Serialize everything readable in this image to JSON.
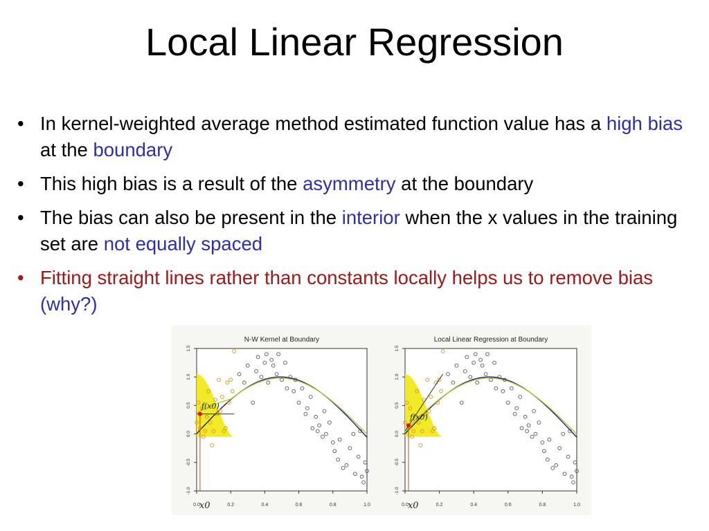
{
  "slide": {
    "title": "Local Linear Regression",
    "bullets": [
      {
        "parts": [
          {
            "text": "In kernel-weighted average method estimated function value has a ",
            "style": "normal"
          },
          {
            "text": "high bias",
            "style": "highlight"
          },
          {
            "text": " at the ",
            "style": "normal"
          },
          {
            "text": "boundary",
            "style": "highlight"
          }
        ]
      },
      {
        "parts": [
          {
            "text": "This high bias is a result of the ",
            "style": "normal"
          },
          {
            "text": "asymmetry",
            "style": "highlight"
          },
          {
            "text": " at the boundary",
            "style": "normal"
          }
        ]
      },
      {
        "parts": [
          {
            "text": "The bias can also be present in the ",
            "style": "normal"
          },
          {
            "text": "interior",
            "style": "highlight"
          },
          {
            "text": " when the x values in the training set are ",
            "style": "normal"
          },
          {
            "text": "not equally spaced",
            "style": "highlight"
          }
        ]
      },
      {
        "bullet_color": "#a01818",
        "parts": [
          {
            "text": "Fitting straight lines rather than constants locally helps us to remove bias ",
            "style": "red"
          },
          {
            "text": "(why?)",
            "style": "highlight"
          }
        ]
      }
    ]
  },
  "colors": {
    "highlight": "#2e2ea8",
    "red": "#a01818",
    "kernel_fill": "#f0ea28",
    "true_curve": "#1a1a8a",
    "fit_curve": "#a8d02a",
    "point_in_window": "#e09018",
    "point_outside": "#555555",
    "estimate_point": "#dd1010"
  },
  "chart_data": [
    {
      "type": "scatter",
      "title": "N-W Kernel at Boundary",
      "xlabel": "",
      "ylabel": "",
      "xlim": [
        0.0,
        1.0
      ],
      "ylim": [
        -1.0,
        1.5
      ],
      "x_ticks": [
        "0.0",
        "0.2",
        "0.4",
        "0.6",
        "0.8",
        "1.0"
      ],
      "y_ticks": [
        "-1.0",
        "-0.5",
        "0.0",
        "0.5",
        "1.0",
        "1.5"
      ],
      "x0_label": "x0",
      "fx0_label": "f(x0)",
      "x0": 0.02,
      "fx0": 0.35,
      "kernel_window": [
        0.0,
        0.22
      ],
      "fit_type": "constant",
      "points": [
        [
          0.0,
          0.2
        ],
        [
          0.01,
          0.55
        ],
        [
          0.02,
          0.1
        ],
        [
          0.03,
          0.45
        ],
        [
          0.04,
          -0.05
        ],
        [
          0.05,
          0.05
        ],
        [
          0.06,
          0.3
        ],
        [
          0.07,
          0.75
        ],
        [
          0.08,
          0.2
        ],
        [
          0.09,
          -0.2
        ],
        [
          0.1,
          0.05
        ],
        [
          0.11,
          0.6
        ],
        [
          0.12,
          0.35
        ],
        [
          0.13,
          0.95
        ],
        [
          0.14,
          0.4
        ],
        [
          0.15,
          0.65
        ],
        [
          0.16,
          0.05
        ],
        [
          0.17,
          0.1
        ],
        [
          0.18,
          0.9
        ],
        [
          0.19,
          0.55
        ],
        [
          0.2,
          0.95
        ],
        [
          0.21,
          0.75
        ],
        [
          0.22,
          1.45
        ],
        [
          0.25,
          1.05
        ],
        [
          0.28,
          0.9
        ],
        [
          0.3,
          1.2
        ],
        [
          0.33,
          0.55
        ],
        [
          0.35,
          1.1
        ],
        [
          0.36,
          1.35
        ],
        [
          0.38,
          1.0
        ],
        [
          0.4,
          1.25
        ],
        [
          0.41,
          1.4
        ],
        [
          0.42,
          0.9
        ],
        [
          0.44,
          1.3
        ],
        [
          0.45,
          1.2
        ],
        [
          0.47,
          1.05
        ],
        [
          0.48,
          1.4
        ],
        [
          0.5,
          0.95
        ],
        [
          0.52,
          1.25
        ],
        [
          0.53,
          0.8
        ],
        [
          0.55,
          1.0
        ],
        [
          0.57,
          0.75
        ],
        [
          0.58,
          0.95
        ],
        [
          0.6,
          0.55
        ],
        [
          0.62,
          0.8
        ],
        [
          0.64,
          0.35
        ],
        [
          0.65,
          0.45
        ],
        [
          0.67,
          0.65
        ],
        [
          0.68,
          0.1
        ],
        [
          0.7,
          0.3
        ],
        [
          0.71,
          0.05
        ],
        [
          0.72,
          0.15
        ],
        [
          0.74,
          -0.05
        ],
        [
          0.75,
          0.4
        ],
        [
          0.76,
          0.0
        ],
        [
          0.78,
          0.2
        ],
        [
          0.8,
          -0.15
        ],
        [
          0.81,
          -0.3
        ],
        [
          0.83,
          -0.45
        ],
        [
          0.84,
          -0.1
        ],
        [
          0.86,
          -0.6
        ],
        [
          0.88,
          -0.55
        ],
        [
          0.9,
          -0.25
        ],
        [
          0.92,
          0.0
        ],
        [
          0.93,
          -0.7
        ],
        [
          0.95,
          -0.4
        ],
        [
          0.96,
          0.05
        ],
        [
          0.97,
          -0.75
        ],
        [
          0.98,
          -0.85
        ],
        [
          0.99,
          -0.5
        ],
        [
          1.0,
          -0.65
        ]
      ]
    },
    {
      "type": "scatter",
      "title": "Local Linear Regression at Boundary",
      "xlabel": "",
      "ylabel": "",
      "xlim": [
        0.0,
        1.0
      ],
      "ylim": [
        -1.0,
        1.5
      ],
      "x_ticks": [
        "0.0",
        "0.2",
        "0.4",
        "0.6",
        "0.8",
        "1.0"
      ],
      "y_ticks": [
        "-1.0",
        "-0.5",
        "0.0",
        "0.5",
        "1.0",
        "1.5"
      ],
      "x0_label": "x0",
      "fx0_label": "f(x0)",
      "x0": 0.02,
      "fx0": 0.15,
      "kernel_window": [
        0.0,
        0.22
      ],
      "fit_type": "linear",
      "points": [
        [
          0.0,
          0.2
        ],
        [
          0.01,
          0.55
        ],
        [
          0.02,
          0.1
        ],
        [
          0.03,
          0.45
        ],
        [
          0.04,
          -0.05
        ],
        [
          0.05,
          0.05
        ],
        [
          0.06,
          0.3
        ],
        [
          0.07,
          0.75
        ],
        [
          0.08,
          0.2
        ],
        [
          0.09,
          -0.2
        ],
        [
          0.1,
          0.05
        ],
        [
          0.11,
          0.6
        ],
        [
          0.12,
          0.35
        ],
        [
          0.13,
          0.95
        ],
        [
          0.14,
          0.4
        ],
        [
          0.15,
          0.65
        ],
        [
          0.16,
          0.05
        ],
        [
          0.17,
          0.1
        ],
        [
          0.18,
          0.9
        ],
        [
          0.19,
          0.55
        ],
        [
          0.2,
          0.95
        ],
        [
          0.21,
          0.75
        ],
        [
          0.22,
          1.45
        ],
        [
          0.25,
          1.05
        ],
        [
          0.28,
          0.9
        ],
        [
          0.3,
          1.2
        ],
        [
          0.33,
          0.55
        ],
        [
          0.35,
          1.1
        ],
        [
          0.36,
          1.35
        ],
        [
          0.38,
          1.0
        ],
        [
          0.4,
          1.25
        ],
        [
          0.41,
          1.4
        ],
        [
          0.42,
          0.9
        ],
        [
          0.44,
          1.3
        ],
        [
          0.45,
          1.2
        ],
        [
          0.47,
          1.05
        ],
        [
          0.48,
          1.4
        ],
        [
          0.5,
          0.95
        ],
        [
          0.52,
          1.25
        ],
        [
          0.53,
          0.8
        ],
        [
          0.55,
          1.0
        ],
        [
          0.57,
          0.75
        ],
        [
          0.58,
          0.95
        ],
        [
          0.6,
          0.55
        ],
        [
          0.62,
          0.8
        ],
        [
          0.64,
          0.35
        ],
        [
          0.65,
          0.45
        ],
        [
          0.67,
          0.65
        ],
        [
          0.68,
          0.1
        ],
        [
          0.7,
          0.3
        ],
        [
          0.71,
          0.05
        ],
        [
          0.72,
          0.15
        ],
        [
          0.74,
          -0.05
        ],
        [
          0.75,
          0.4
        ],
        [
          0.76,
          0.0
        ],
        [
          0.78,
          0.2
        ],
        [
          0.8,
          -0.15
        ],
        [
          0.81,
          -0.3
        ],
        [
          0.83,
          -0.45
        ],
        [
          0.84,
          -0.1
        ],
        [
          0.86,
          -0.6
        ],
        [
          0.88,
          -0.55
        ],
        [
          0.9,
          -0.25
        ],
        [
          0.92,
          0.0
        ],
        [
          0.93,
          -0.7
        ],
        [
          0.95,
          -0.4
        ],
        [
          0.96,
          0.05
        ],
        [
          0.97,
          -0.75
        ],
        [
          0.98,
          -0.85
        ],
        [
          0.99,
          -0.5
        ],
        [
          1.0,
          -0.65
        ]
      ]
    }
  ]
}
